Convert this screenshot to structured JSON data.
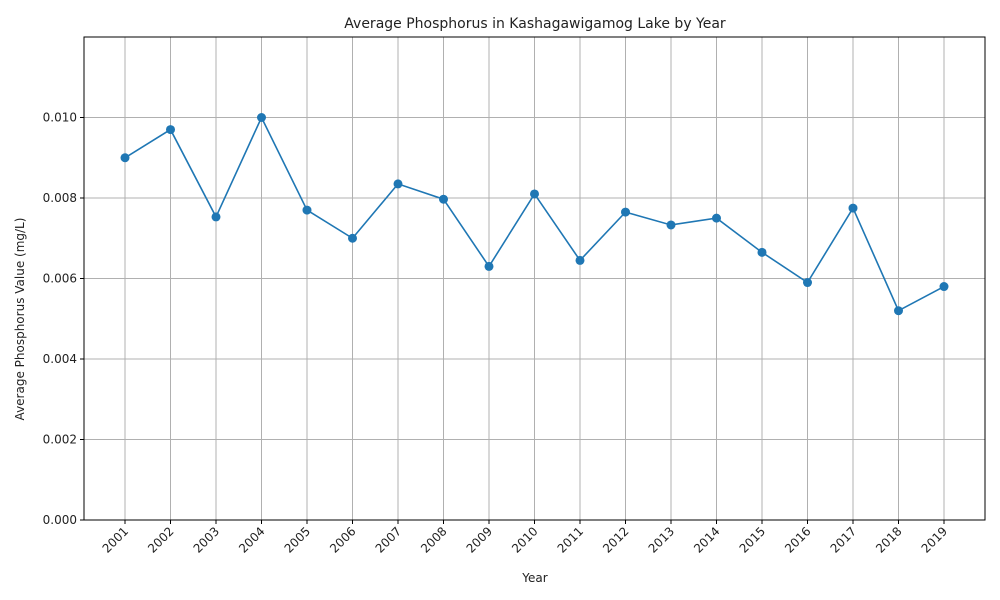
{
  "chart_data": {
    "type": "line",
    "title": "Average Phosphorus in Kashagawigamog Lake by Year",
    "xlabel": "Year",
    "ylabel": "Average Phosphorus Value (mg/L)",
    "categories": [
      "2001",
      "2002",
      "2003",
      "2004",
      "2005",
      "2006",
      "2007",
      "2008",
      "2009",
      "2010",
      "2011",
      "2012",
      "2013",
      "2014",
      "2015",
      "2016",
      "2017",
      "2018",
      "2019"
    ],
    "series": [
      {
        "values": [
          0.009,
          0.0097,
          0.00753,
          0.01,
          0.0077,
          0.007,
          0.00835,
          0.00797,
          0.0063,
          0.0081,
          0.00645,
          0.00765,
          0.00733,
          0.0075,
          0.00665,
          0.0059,
          0.00775,
          0.0052,
          0.0058
        ]
      }
    ],
    "ylim": [
      0,
      0.012
    ],
    "yticks": [
      "0.000",
      "0.002",
      "0.004",
      "0.006",
      "0.008",
      "0.010"
    ],
    "grid": true,
    "colors": {
      "line": "#1f77b4",
      "grid": "#b0b0b0",
      "axis": "#000000"
    }
  }
}
